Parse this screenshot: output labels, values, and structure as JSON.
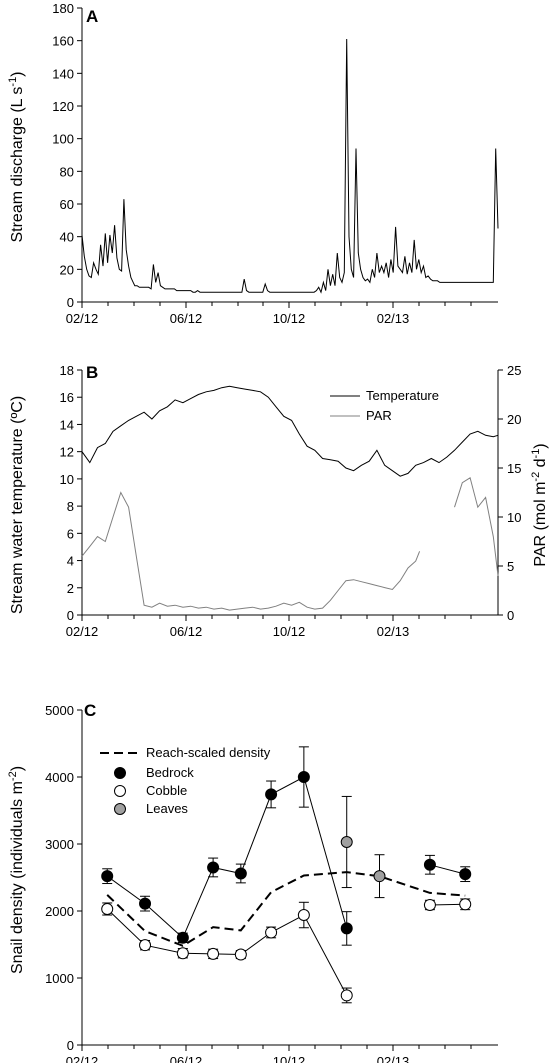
{
  "chart_data": [
    {
      "panel": "A",
      "type": "line",
      "ylabel": "Stream discharge (L s",
      "ylabel_sup": "-1",
      "ylabel_close": ")",
      "ylim": [
        0,
        180
      ],
      "yticks": [
        0,
        20,
        40,
        60,
        80,
        100,
        120,
        140,
        160,
        180
      ],
      "x_tick_labels": [
        "02/12",
        "06/12",
        "10/12",
        "02/13"
      ],
      "x": [
        0,
        3,
        6,
        9,
        12,
        15,
        18,
        21,
        24,
        27,
        30,
        33,
        36,
        39,
        42,
        45,
        48,
        51,
        54,
        57,
        60,
        63,
        66,
        68,
        71,
        74,
        77,
        80,
        83,
        86,
        89,
        92,
        95,
        98,
        101,
        104,
        107,
        110,
        113,
        116,
        119,
        122,
        125,
        128,
        131,
        134,
        137,
        140,
        143,
        146,
        149,
        152,
        155,
        158,
        161,
        164,
        167,
        170,
        173,
        176,
        179,
        182,
        185,
        188,
        191,
        194,
        197,
        200,
        203,
        206,
        209,
        212,
        215,
        218,
        221,
        224,
        227,
        230,
        233,
        236,
        239,
        242,
        245,
        248,
        251,
        254,
        257,
        260,
        263,
        266,
        269,
        272,
        275,
        278,
        281,
        284,
        287,
        290,
        293,
        296,
        299,
        302,
        305,
        308,
        311,
        314,
        317,
        320,
        323,
        326,
        329,
        332,
        335,
        338,
        341,
        344,
        347,
        350,
        353,
        356,
        359,
        362,
        365,
        368,
        371,
        374,
        377,
        380,
        383,
        386,
        389,
        392,
        395,
        398,
        401,
        404,
        407,
        410,
        413,
        416,
        419,
        422,
        425,
        428,
        431,
        434,
        437,
        440,
        443,
        446,
        449,
        452,
        455,
        458,
        461,
        464,
        467,
        470,
        473,
        476,
        479,
        482,
        485,
        488,
        491,
        494,
        497,
        500,
        503,
        506,
        509,
        512,
        515,
        518,
        521,
        524,
        527,
        530,
        533,
        536
      ],
      "values": [
        41,
        28,
        20,
        16,
        15,
        24,
        20,
        17,
        35,
        22,
        42,
        24,
        41,
        30,
        47,
        27,
        20,
        19,
        63,
        32,
        22,
        15,
        12,
        10,
        10,
        9,
        9,
        9,
        9,
        9,
        8,
        23,
        12,
        18,
        10,
        9,
        8,
        8,
        8,
        8,
        8,
        7,
        7,
        7,
        7,
        7,
        7,
        7,
        6,
        6,
        7,
        6,
        6,
        6,
        6,
        6,
        6,
        6,
        6,
        6,
        6,
        6,
        6,
        6,
        6,
        6,
        6,
        6,
        6,
        6,
        14,
        7,
        6,
        6,
        6,
        6,
        6,
        6,
        6,
        11,
        7,
        6,
        6,
        6,
        6,
        6,
        6,
        6,
        6,
        6,
        6,
        6,
        6,
        6,
        6,
        6,
        6,
        6,
        6,
        6,
        6,
        7,
        9,
        6,
        12,
        7,
        20,
        10,
        17,
        10,
        30,
        15,
        12,
        18,
        161,
        40,
        20,
        15,
        94,
        30,
        20,
        15,
        13,
        14,
        12,
        20,
        15,
        30,
        18,
        22,
        18,
        24,
        15,
        26,
        18,
        46,
        22,
        20,
        18,
        28,
        17,
        24,
        18,
        38,
        20,
        26,
        18,
        22,
        15,
        16,
        14,
        13,
        13,
        13,
        12,
        12,
        12,
        12,
        12,
        12,
        12,
        12,
        12,
        12,
        12,
        12,
        12,
        12,
        12,
        12,
        12,
        12,
        12,
        12,
        12,
        12,
        12,
        12,
        94,
        45
      ],
      "xmax": 536
    },
    {
      "panel": "B",
      "type": "line",
      "ylabel": "Stream water temperature (ºC)",
      "ylabel_right": "PAR (mol m",
      "ylabel_right_sup1": "-2",
      "ylabel_right_mid": " d",
      "ylabel_right_sup2": "-1",
      "ylabel_right_close": ")",
      "ylim": [
        0,
        18
      ],
      "yticks": [
        0,
        2,
        4,
        6,
        8,
        10,
        12,
        14,
        16,
        18
      ],
      "ylim_right": [
        0,
        25
      ],
      "yticks_right": [
        0,
        5,
        10,
        15,
        20,
        25
      ],
      "x_tick_labels": [
        "02/12",
        "06/12",
        "10/12",
        "02/13"
      ],
      "legend": [
        "Temperature",
        "PAR"
      ],
      "series_temperature": {
        "x": [
          0,
          10,
          20,
          30,
          40,
          50,
          60,
          70,
          80,
          90,
          100,
          110,
          120,
          130,
          140,
          150,
          160,
          170,
          180,
          190,
          200,
          210,
          220,
          230,
          240,
          250,
          260,
          270,
          280,
          290,
          300,
          310,
          320,
          330,
          340,
          350,
          360,
          370,
          380,
          390,
          400,
          410,
          420,
          430,
          440,
          450,
          460,
          470,
          480,
          490,
          500,
          510,
          520,
          530,
          536
        ],
        "values": [
          12.0,
          11.2,
          12.3,
          12.6,
          13.5,
          13.9,
          14.3,
          14.6,
          14.9,
          14.4,
          15.0,
          15.3,
          15.8,
          15.6,
          15.9,
          16.2,
          16.4,
          16.5,
          16.7,
          16.8,
          16.7,
          16.6,
          16.5,
          16.4,
          16.0,
          15.3,
          14.6,
          14.3,
          13.3,
          12.4,
          12.1,
          11.5,
          11.4,
          11.3,
          10.8,
          10.6,
          11.0,
          11.3,
          12.1,
          11.0,
          10.6,
          10.2,
          10.4,
          11.0,
          11.2,
          11.5,
          11.2,
          11.6,
          12.1,
          12.7,
          13.3,
          13.5,
          13.2,
          13.1,
          13.2
        ]
      },
      "series_par": {
        "x": [
          0,
          10,
          20,
          30,
          40,
          50,
          60,
          70,
          80,
          90,
          100,
          110,
          120,
          130,
          140,
          150,
          160,
          170,
          180,
          190,
          200,
          210,
          220,
          230,
          240,
          250,
          260,
          270,
          280,
          290,
          300,
          310,
          320,
          330,
          340,
          350,
          360,
          370,
          380,
          390,
          400,
          410,
          420,
          430,
          435,
          470,
          480,
          490,
          500,
          510,
          520,
          530,
          536
        ],
        "values": [
          6.0,
          7.0,
          8.0,
          7.5,
          10.0,
          12.5,
          11.0,
          6.0,
          1.0,
          0.8,
          1.2,
          0.9,
          1.0,
          0.8,
          0.9,
          0.7,
          0.8,
          0.6,
          0.7,
          0.5,
          0.6,
          0.7,
          0.8,
          0.6,
          0.7,
          0.9,
          1.2,
          1.0,
          1.3,
          0.8,
          0.6,
          0.7,
          1.5,
          2.5,
          3.5,
          3.6,
          3.4,
          3.2,
          3.0,
          2.8,
          2.6,
          3.5,
          4.8,
          5.5,
          6.5,
          null,
          11.0,
          13.5,
          14.0,
          11.0,
          12.0,
          8.0,
          4.0
        ]
      },
      "xmax": 536
    },
    {
      "panel": "C",
      "type": "scatter",
      "ylabel": "Snail density (individuals m",
      "ylabel_sup": "-2",
      "ylabel_close": ")",
      "ylim": [
        0,
        5000
      ],
      "yticks": [
        0,
        1000,
        2000,
        3000,
        4000,
        5000
      ],
      "x_tick_labels": [
        "02/12",
        "06/12",
        "10/12",
        "02/13"
      ],
      "legend": [
        "Reach-scaled density",
        "Bedrock",
        "Cobble",
        "Leaves"
      ],
      "months": [
        1,
        2.5,
        4,
        5.2,
        6.3,
        7.5,
        8.8,
        10.5,
        11.8,
        13.8,
        15.2
      ],
      "bedrock": [
        2520,
        2110,
        1600,
        2650,
        2560,
        3740,
        4000,
        1740,
        null,
        2690,
        2550
      ],
      "bedrock_err": [
        110,
        110,
        70,
        140,
        140,
        200,
        450,
        250,
        null,
        140,
        110
      ],
      "cobble": [
        2030,
        1490,
        1370,
        1360,
        1350,
        1680,
        1940,
        740,
        null,
        2090,
        2100
      ],
      "cobble_err": [
        90,
        70,
        70,
        70,
        60,
        80,
        190,
        110,
        null,
        70,
        80
      ],
      "leaves_month": [
        10.5,
        11.8
      ],
      "leaves": [
        3030,
        2520
      ],
      "leaves_err": [
        680,
        320
      ],
      "reach_months": [
        1,
        2.5,
        4,
        5.2,
        6.3,
        7.5,
        8.8,
        10.5,
        11.8,
        13.8,
        15.2
      ],
      "reach": [
        2240,
        1700,
        1480,
        1760,
        1710,
        2280,
        2530,
        2580,
        2520,
        2270,
        2230
      ],
      "xmax": 16.5
    }
  ],
  "colors": {
    "ink": "#000000",
    "par": "#808080",
    "leaves": "#a0a0a0",
    "cobble": "#ffffff"
  }
}
